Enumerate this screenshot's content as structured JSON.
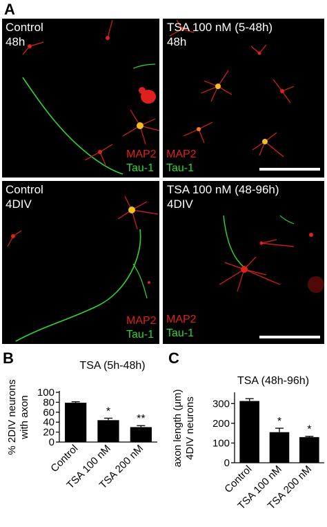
{
  "figure": {
    "letter_a": "A",
    "letter_b": "B",
    "letter_c": "C"
  },
  "micrographs": [
    {
      "label1": "Control",
      "label2": "48h",
      "stain1": "MAP2",
      "stain2": "Tau-1",
      "scale_bar": false
    },
    {
      "label1": "TSA 100 nM (5-48h)",
      "label2": "48h",
      "stain1": "MAP2",
      "stain2": "Tau-1",
      "scale_bar": true
    },
    {
      "label1": "Control",
      "label2": "4DIV",
      "stain1": "MAP2",
      "stain2": "Tau-1",
      "scale_bar": false
    },
    {
      "label1": "TSA 100 nM (48-96h)",
      "label2": "4DIV",
      "stain1": "MAP2",
      "stain2": "Tau-1",
      "scale_bar": true
    }
  ],
  "colors": {
    "map2": "#e0201c",
    "tau1": "#2fd82f",
    "background": "#000000",
    "bar": "#000000"
  },
  "chart_data": [
    {
      "type": "bar",
      "title": "TSA (5h-48h)",
      "ylabel_line1": "% 2DIV neurons",
      "ylabel_line2": "with axon",
      "categories": [
        "Control",
        "TSA 100 nM",
        "TSA 200 nM"
      ],
      "values": [
        79,
        44,
        30
      ],
      "errors": [
        2,
        4,
        3
      ],
      "significance": [
        "",
        "*",
        "**"
      ],
      "ylim": [
        0,
        100
      ],
      "yticks": [
        0,
        20,
        40,
        60,
        80,
        100
      ]
    },
    {
      "type": "bar",
      "title": "TSA (48h-96h)",
      "ylabel_line1": "axon length (μm)",
      "ylabel_line2": "4DIV neurons",
      "categories": [
        "Control",
        "TSA 100 nM",
        "TSA 200 nM"
      ],
      "values": [
        313,
        155,
        130
      ],
      "errors": [
        12,
        20,
        4
      ],
      "significance": [
        "",
        "*",
        "*"
      ],
      "ylim": [
        0,
        350
      ],
      "yticks": [
        0,
        100,
        200,
        300
      ]
    }
  ]
}
